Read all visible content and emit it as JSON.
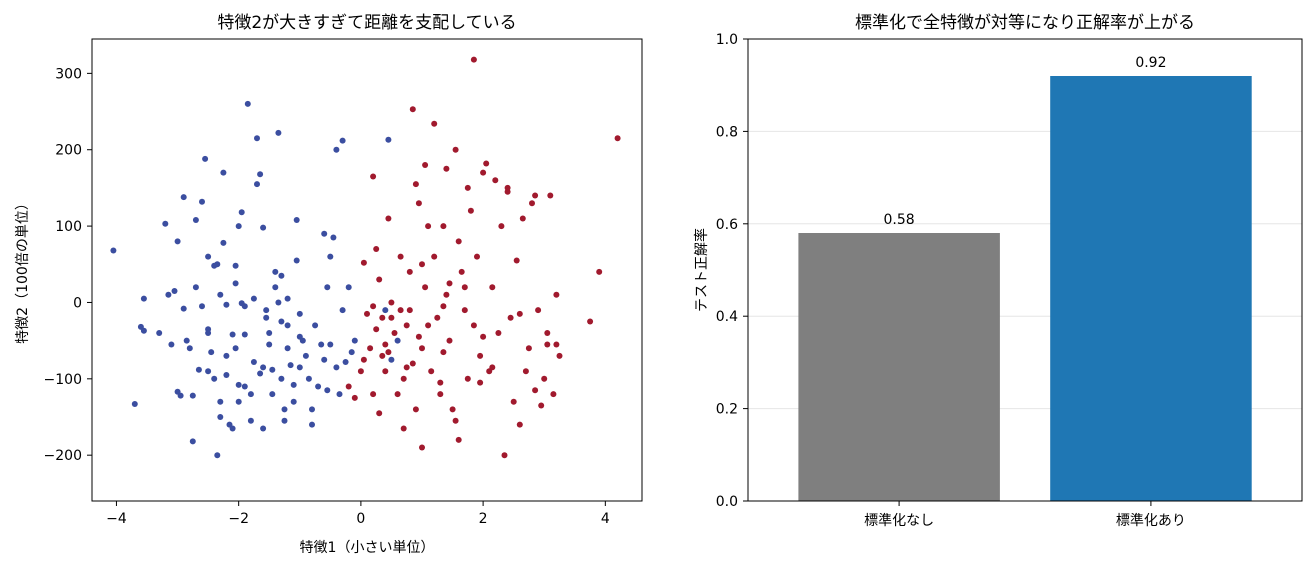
{
  "chart_data": [
    {
      "type": "scatter",
      "title": "特徴2が大きすぎて距離を支配している",
      "xlabel": "特徴1（小さい単位）",
      "ylabel": "特徴2（100倍の単位）",
      "xlim": [
        -4.4,
        4.6
      ],
      "ylim": [
        -260,
        345
      ],
      "xticks": [
        -4,
        -2,
        0,
        2,
        4
      ],
      "yticks": [
        -200,
        -100,
        0,
        100,
        200,
        300
      ],
      "xtick_labels": [
        "−4",
        "−2",
        "0",
        "2",
        "4"
      ],
      "ytick_labels": [
        "−200",
        "−100",
        "0",
        "100",
        "200",
        "300"
      ],
      "grid": false,
      "colors": {
        "class_0": "#3b4ea0",
        "class_1": "#a11a2e"
      },
      "series": [
        {
          "class": 0,
          "points": [
            [
              -4.05,
              68
            ],
            [
              -3.7,
              -133
            ],
            [
              -3.6,
              -32
            ],
            [
              -3.55,
              -37
            ],
            [
              -3.55,
              5
            ],
            [
              -3.3,
              -40
            ],
            [
              -3.2,
              103
            ],
            [
              -3.15,
              10
            ],
            [
              -3.1,
              -55
            ],
            [
              -3.05,
              15
            ],
            [
              -3.0,
              -117
            ],
            [
              -3.0,
              80
            ],
            [
              -2.95,
              -122
            ],
            [
              -2.9,
              -8
            ],
            [
              -2.9,
              138
            ],
            [
              -2.85,
              -50
            ],
            [
              -2.8,
              -60
            ],
            [
              -2.75,
              -182
            ],
            [
              -2.75,
              -122
            ],
            [
              -2.7,
              108
            ],
            [
              -2.7,
              20
            ],
            [
              -2.65,
              -88
            ],
            [
              -2.6,
              -5
            ],
            [
              -2.55,
              188
            ],
            [
              -2.5,
              -35
            ],
            [
              -2.5,
              -40
            ],
            [
              -2.5,
              60
            ],
            [
              -2.5,
              -90
            ],
            [
              -2.45,
              -65
            ],
            [
              -2.4,
              -100
            ],
            [
              -2.35,
              -200
            ],
            [
              -2.35,
              50
            ],
            [
              -2.3,
              -130
            ],
            [
              -2.3,
              -150
            ],
            [
              -2.3,
              10
            ],
            [
              -2.25,
              170
            ],
            [
              -2.25,
              78
            ],
            [
              -2.2,
              -3
            ],
            [
              -2.2,
              -70
            ],
            [
              -2.2,
              -95
            ],
            [
              -2.15,
              -160
            ],
            [
              -2.1,
              -165
            ],
            [
              -2.1,
              -42
            ],
            [
              -2.05,
              -60
            ],
            [
              -2.05,
              25
            ],
            [
              -2.0,
              100
            ],
            [
              -2.0,
              -108
            ],
            [
              -2.0,
              -130
            ],
            [
              -1.95,
              -1
            ],
            [
              -1.9,
              -5
            ],
            [
              -1.9,
              -110
            ],
            [
              -1.9,
              -42
            ],
            [
              -1.85,
              260
            ],
            [
              -1.8,
              -120
            ],
            [
              -1.8,
              -155
            ],
            [
              -1.75,
              5
            ],
            [
              -1.75,
              -78
            ],
            [
              -1.7,
              215
            ],
            [
              -1.7,
              155
            ],
            [
              -1.65,
              168
            ],
            [
              -1.65,
              -93
            ],
            [
              -1.6,
              -85
            ],
            [
              -1.6,
              -165
            ],
            [
              -1.55,
              -20
            ],
            [
              -1.55,
              -10
            ],
            [
              -1.5,
              -40
            ],
            [
              -1.5,
              -55
            ],
            [
              -1.45,
              -88
            ],
            [
              -1.45,
              -120
            ],
            [
              -1.4,
              40
            ],
            [
              -1.4,
              20
            ],
            [
              -1.35,
              0
            ],
            [
              -1.3,
              -25
            ],
            [
              -1.3,
              -100
            ],
            [
              -1.25,
              -140
            ],
            [
              -1.25,
              -155
            ],
            [
              -1.2,
              5
            ],
            [
              -1.2,
              -30
            ],
            [
              -1.2,
              -60
            ],
            [
              -1.15,
              -82
            ],
            [
              -1.1,
              -130
            ],
            [
              -1.05,
              108
            ],
            [
              -1.05,
              55
            ],
            [
              -1.0,
              -15
            ],
            [
              -1.0,
              -45
            ],
            [
              -1.0,
              -85
            ],
            [
              -0.95,
              -50
            ],
            [
              -0.9,
              -70
            ],
            [
              -0.85,
              -100
            ],
            [
              -0.8,
              -140
            ],
            [
              -0.8,
              -160
            ],
            [
              -0.75,
              -30
            ],
            [
              -0.7,
              -110
            ],
            [
              -0.65,
              -55
            ],
            [
              -0.6,
              -75
            ],
            [
              -0.55,
              -115
            ],
            [
              -0.5,
              60
            ],
            [
              -0.45,
              85
            ],
            [
              -0.4,
              -85
            ],
            [
              -0.35,
              -120
            ],
            [
              -0.3,
              -10
            ],
            [
              -0.25,
              -78
            ],
            [
              -0.2,
              20
            ],
            [
              -0.15,
              -65
            ],
            [
              -0.1,
              -50
            ],
            [
              -1.35,
              222
            ],
            [
              -1.95,
              118
            ],
            [
              -2.6,
              132
            ],
            [
              -1.6,
              98
            ],
            [
              -1.1,
              -108
            ],
            [
              -0.4,
              200
            ],
            [
              -0.3,
              212
            ],
            [
              0.45,
              213
            ],
            [
              -2.05,
              48
            ],
            [
              -1.3,
              35
            ],
            [
              -2.4,
              48
            ],
            [
              0.4,
              -10
            ],
            [
              0.6,
              -50
            ],
            [
              0.5,
              -75
            ],
            [
              -0.6,
              90
            ],
            [
              -0.55,
              20
            ],
            [
              -0.5,
              -55
            ]
          ]
        },
        {
          "class": 1,
          "points": [
            [
              0.0,
              -90
            ],
            [
              0.05,
              52
            ],
            [
              0.1,
              -15
            ],
            [
              0.15,
              -60
            ],
            [
              0.2,
              165
            ],
            [
              0.2,
              -120
            ],
            [
              0.25,
              70
            ],
            [
              0.3,
              30
            ],
            [
              0.3,
              -145
            ],
            [
              0.35,
              -70
            ],
            [
              0.4,
              -55
            ],
            [
              0.4,
              -90
            ],
            [
              0.45,
              110
            ],
            [
              0.5,
              0
            ],
            [
              0.5,
              -20
            ],
            [
              0.55,
              -40
            ],
            [
              0.6,
              -120
            ],
            [
              0.65,
              60
            ],
            [
              0.7,
              -100
            ],
            [
              0.7,
              -165
            ],
            [
              0.75,
              -85
            ],
            [
              0.8,
              40
            ],
            [
              0.8,
              -10
            ],
            [
              0.85,
              253
            ],
            [
              0.85,
              -80
            ],
            [
              0.9,
              -140
            ],
            [
              0.95,
              130
            ],
            [
              0.95,
              -45
            ],
            [
              1.0,
              -190
            ],
            [
              1.0,
              -60
            ],
            [
              1.05,
              180
            ],
            [
              1.05,
              20
            ],
            [
              1.1,
              -30
            ],
            [
              1.15,
              -90
            ],
            [
              1.2,
              234
            ],
            [
              1.2,
              60
            ],
            [
              1.25,
              -20
            ],
            [
              1.3,
              -120
            ],
            [
              1.35,
              100
            ],
            [
              1.35,
              -65
            ],
            [
              1.4,
              175
            ],
            [
              1.4,
              10
            ],
            [
              1.45,
              -50
            ],
            [
              1.5,
              -140
            ],
            [
              1.55,
              200
            ],
            [
              1.55,
              -155
            ],
            [
              1.6,
              -180
            ],
            [
              1.65,
              40
            ],
            [
              1.7,
              -10
            ],
            [
              1.75,
              150
            ],
            [
              1.75,
              -100
            ],
            [
              1.8,
              120
            ],
            [
              1.85,
              318
            ],
            [
              1.85,
              -30
            ],
            [
              1.9,
              60
            ],
            [
              1.95,
              -70
            ],
            [
              2.0,
              170
            ],
            [
              2.05,
              182
            ],
            [
              2.1,
              -90
            ],
            [
              2.15,
              20
            ],
            [
              2.2,
              160
            ],
            [
              2.25,
              -40
            ],
            [
              2.3,
              100
            ],
            [
              2.35,
              -200
            ],
            [
              2.4,
              145
            ],
            [
              2.45,
              -20
            ],
            [
              2.5,
              -130
            ],
            [
              2.55,
              55
            ],
            [
              2.6,
              -160
            ],
            [
              2.65,
              110
            ],
            [
              2.7,
              -90
            ],
            [
              2.75,
              -60
            ],
            [
              2.8,
              130
            ],
            [
              2.85,
              -115
            ],
            [
              2.9,
              -10
            ],
            [
              2.95,
              -135
            ],
            [
              3.0,
              -100
            ],
            [
              3.05,
              -40
            ],
            [
              3.1,
              140
            ],
            [
              3.15,
              -120
            ],
            [
              3.2,
              10
            ],
            [
              3.2,
              -55
            ],
            [
              3.25,
              -70
            ],
            [
              3.75,
              -25
            ],
            [
              3.9,
              40
            ],
            [
              4.2,
              215
            ],
            [
              2.85,
              140
            ],
            [
              2.4,
              150
            ],
            [
              1.35,
              -5
            ],
            [
              1.6,
              80
            ],
            [
              0.9,
              155
            ],
            [
              1.7,
              20
            ],
            [
              2.0,
              -45
            ],
            [
              0.65,
              -10
            ],
            [
              1.3,
              -105
            ],
            [
              1.0,
              50
            ],
            [
              0.2,
              -5
            ],
            [
              0.35,
              -20
            ],
            [
              1.1,
              100
            ],
            [
              2.6,
              -15
            ],
            [
              3.05,
              -55
            ],
            [
              0.45,
              -65
            ],
            [
              0.75,
              -30
            ],
            [
              1.45,
              25
            ],
            [
              1.95,
              -105
            ],
            [
              0.25,
              -35
            ],
            [
              2.15,
              -85
            ],
            [
              0.05,
              -75
            ],
            [
              -0.2,
              -110
            ],
            [
              -0.1,
              -125
            ]
          ]
        }
      ]
    },
    {
      "type": "bar",
      "title": "標準化で全特徴が対等になり正解率が上がる",
      "xlabel": "",
      "ylabel": "テスト正解率",
      "categories": [
        "標準化なし",
        "標準化あり"
      ],
      "values": [
        0.58,
        0.92
      ],
      "value_labels": [
        "0.58",
        "0.92"
      ],
      "colors": [
        "#7f7f7f",
        "#1f77b4"
      ],
      "ylim": [
        0,
        1.0
      ],
      "yticks": [
        0.0,
        0.2,
        0.4,
        0.6,
        0.8,
        1.0
      ],
      "ytick_labels": [
        "0.0",
        "0.2",
        "0.4",
        "0.6",
        "0.8",
        "1.0"
      ],
      "grid": true
    }
  ]
}
